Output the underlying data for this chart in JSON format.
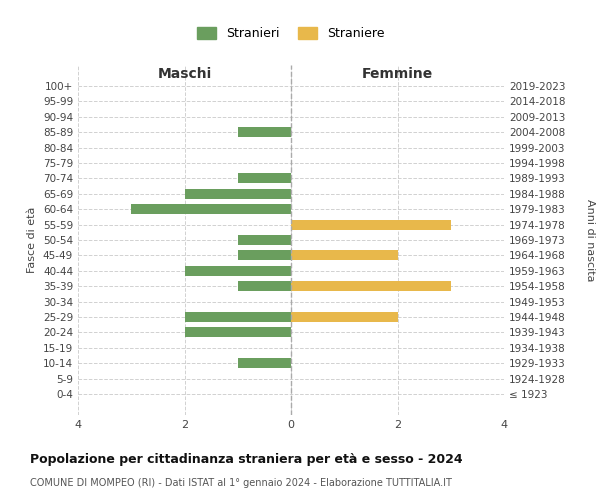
{
  "age_groups": [
    "100+",
    "95-99",
    "90-94",
    "85-89",
    "80-84",
    "75-79",
    "70-74",
    "65-69",
    "60-64",
    "55-59",
    "50-54",
    "45-49",
    "40-44",
    "35-39",
    "30-34",
    "25-29",
    "20-24",
    "15-19",
    "10-14",
    "5-9",
    "0-4"
  ],
  "birth_years": [
    "≤ 1923",
    "1924-1928",
    "1929-1933",
    "1934-1938",
    "1939-1943",
    "1944-1948",
    "1949-1953",
    "1954-1958",
    "1959-1963",
    "1964-1968",
    "1969-1973",
    "1974-1978",
    "1979-1983",
    "1984-1988",
    "1989-1993",
    "1994-1998",
    "1999-2003",
    "2004-2008",
    "2009-2013",
    "2014-2018",
    "2019-2023"
  ],
  "maschi": [
    0,
    0,
    0,
    1,
    0,
    0,
    1,
    2,
    3,
    0,
    1,
    1,
    2,
    1,
    0,
    2,
    2,
    0,
    1,
    0,
    0
  ],
  "femmine": [
    0,
    0,
    0,
    0,
    0,
    0,
    0,
    0,
    0,
    3,
    0,
    2,
    0,
    3,
    0,
    2,
    0,
    0,
    0,
    0,
    0
  ],
  "color_maschi": "#6a9e5e",
  "color_femmine": "#e8b84b",
  "title": "Popolazione per cittadinanza straniera per età e sesso - 2024",
  "subtitle": "COMUNE DI MOMPEO (RI) - Dati ISTAT al 1° gennaio 2024 - Elaborazione TUTTITALIA.IT",
  "ylabel_left": "Fasce di età",
  "ylabel_right": "Anni di nascita",
  "xlabel_maschi": "Maschi",
  "xlabel_femmine": "Femmine",
  "legend_maschi": "Stranieri",
  "legend_femmine": "Straniere",
  "xlim": 4,
  "background_color": "#ffffff",
  "grid_color": "#cccccc"
}
